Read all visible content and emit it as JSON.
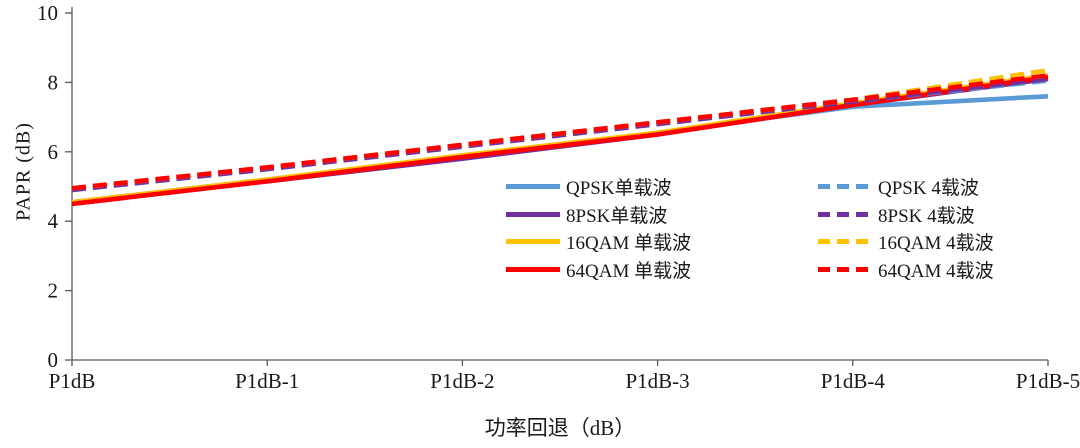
{
  "chart_data": {
    "type": "line",
    "title": "",
    "xlabel": "功率回退（dB）",
    "ylabel": "PAPR (dB)",
    "categories": [
      "P1dB",
      "P1dB-1",
      "P1dB-2",
      "P1dB-3",
      "P1dB-4",
      "P1dB-5"
    ],
    "ylim": [
      0,
      10
    ],
    "ytick_step": 2,
    "grid": false,
    "legend_position": "inside-center-right",
    "axis_color": "#595959",
    "series": [
      {
        "id": "qpsk-single",
        "name": "QPSK单载波",
        "color": "#5B9BD5",
        "dashed": false,
        "values": [
          4.55,
          5.2,
          5.85,
          6.55,
          7.3,
          7.6
        ]
      },
      {
        "id": "8psk-single",
        "name": "8PSK单载波",
        "color": "#7030A0",
        "dashed": false,
        "values": [
          4.5,
          5.15,
          5.8,
          6.5,
          7.35,
          8.1
        ]
      },
      {
        "id": "16qam-single",
        "name": "16QAM 单载波",
        "color": "#FFC000",
        "dashed": false,
        "values": [
          4.55,
          5.2,
          5.9,
          6.55,
          7.4,
          8.2
        ]
      },
      {
        "id": "64qam-single",
        "name": "64QAM 单载波",
        "color": "#FF0000",
        "dashed": false,
        "values": [
          4.5,
          5.15,
          5.85,
          6.5,
          7.35,
          8.15
        ]
      },
      {
        "id": "qpsk-4",
        "name": "QPSK 4载波",
        "color": "#5B9BD5",
        "dashed": true,
        "values": [
          4.9,
          5.5,
          6.15,
          6.8,
          7.45,
          8.05
        ]
      },
      {
        "id": "8psk-4",
        "name": "8PSK 4载波",
        "color": "#7030A0",
        "dashed": true,
        "values": [
          4.9,
          5.5,
          6.15,
          6.8,
          7.45,
          8.1
        ]
      },
      {
        "id": "16qam-4",
        "name": "16QAM 4载波",
        "color": "#FFC000",
        "dashed": true,
        "values": [
          4.95,
          5.55,
          6.2,
          6.85,
          7.5,
          8.35
        ]
      },
      {
        "id": "64qam-4",
        "name": "64QAM 4载波",
        "color": "#FF0000",
        "dashed": true,
        "values": [
          4.95,
          5.55,
          6.2,
          6.85,
          7.5,
          8.2
        ]
      }
    ]
  }
}
